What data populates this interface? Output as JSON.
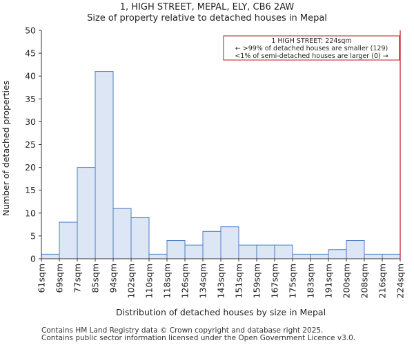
{
  "chart_data": {
    "type": "bar",
    "title": "1, HIGH STREET, MEPAL, ELY, CB6 2AW",
    "subtitle": "Size of property relative to detached houses in Mepal",
    "xlabel": "Distribution of detached houses by size in Mepal",
    "ylabel": "Number of detached properties",
    "ylim": [
      0,
      50
    ],
    "yticks": [
      0,
      5,
      10,
      15,
      20,
      25,
      30,
      35,
      40,
      45,
      50
    ],
    "bin_edges": [
      "61sqm",
      "69sqm",
      "77sqm",
      "85sqm",
      "94sqm",
      "102sqm",
      "110sqm",
      "118sqm",
      "126sqm",
      "134sqm",
      "143sqm",
      "151sqm",
      "159sqm",
      "167sqm",
      "175sqm",
      "183sqm",
      "191sqm",
      "200sqm",
      "208sqm",
      "216sqm",
      "224sqm"
    ],
    "values": [
      1,
      8,
      20,
      41,
      11,
      9,
      1,
      4,
      3,
      6,
      7,
      3,
      3,
      3,
      1,
      1,
      2,
      4,
      1,
      1
    ],
    "bar_color": "#dce6f5",
    "bar_edge_color": "#4a7cc2",
    "marker": {
      "value": "224sqm",
      "color": "#c0111f",
      "annotation": [
        "1 HIGH STREET: 224sqm",
        "← >99% of detached houses are smaller (129)",
        "<1% of semi-detached houses are larger (0) →"
      ]
    }
  },
  "footer": {
    "line1": "Contains HM Land Registry data © Crown copyright and database right 2025.",
    "line2": "Contains public sector information licensed under the Open Government Licence v3.0."
  }
}
